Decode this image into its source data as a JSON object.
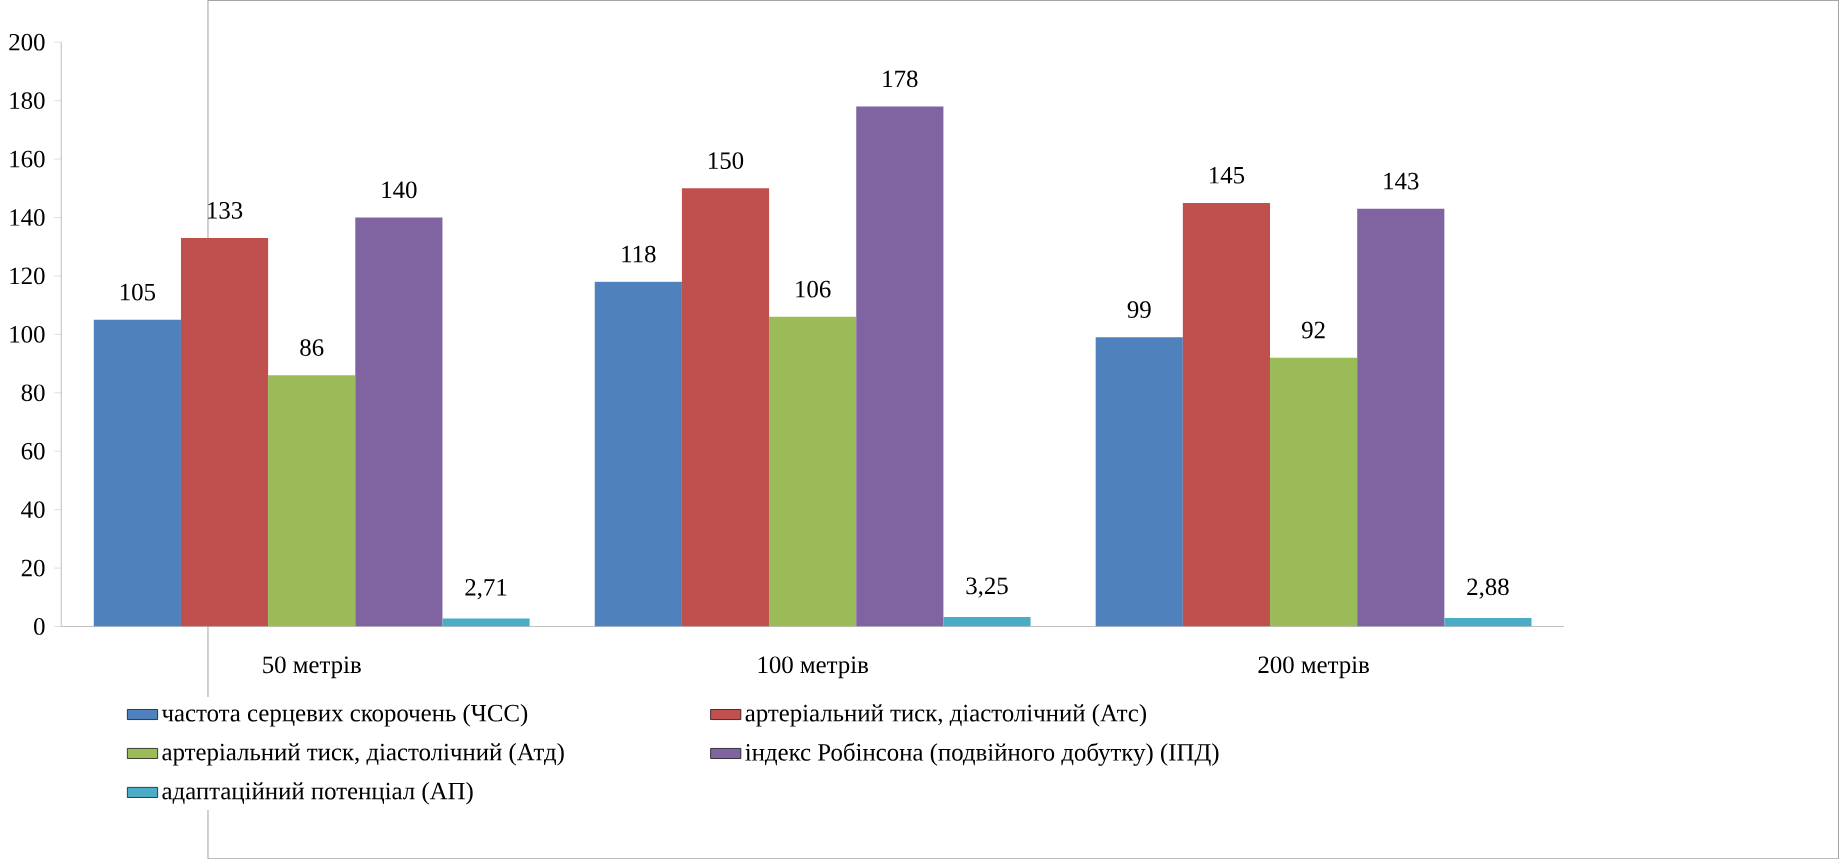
{
  "chart_data": {
    "type": "bar",
    "categories": [
      "50 метрів",
      "100 метрів",
      "200 метрів"
    ],
    "series": [
      {
        "name": "частота серцевих скорочень (ЧСС)",
        "color": "#4f81bd",
        "values": [
          105,
          118,
          99
        ],
        "value_labels": [
          "105",
          "118",
          "99"
        ]
      },
      {
        "name": "артеріальний тиск, діастолічний (Атс)",
        "color": "#c0504d",
        "values": [
          133,
          150,
          145
        ],
        "value_labels": [
          "133",
          "150",
          "145"
        ]
      },
      {
        "name": "артеріальний тиск, діастолічний (Атд)",
        "color": "#9bbb59",
        "values": [
          86,
          106,
          92
        ],
        "value_labels": [
          "86",
          "106",
          "92"
        ]
      },
      {
        "name": "індекс Робінсона (подвійного добутку) (ІПД)",
        "color": "#8064a2",
        "values": [
          140,
          178,
          143
        ],
        "value_labels": [
          "140",
          "178",
          "143"
        ]
      },
      {
        "name": "адаптаційний потенціал (АП)",
        "color": "#4bacc6",
        "values": [
          2.71,
          3.25,
          2.88
        ],
        "value_labels": [
          "2,71",
          "3,25",
          "2,88"
        ]
      }
    ],
    "ylim": [
      0,
      200
    ],
    "yticks": [
      0,
      20,
      40,
      60,
      80,
      100,
      120,
      140,
      160,
      180,
      200
    ],
    "grid": false,
    "legend": "bottom"
  }
}
